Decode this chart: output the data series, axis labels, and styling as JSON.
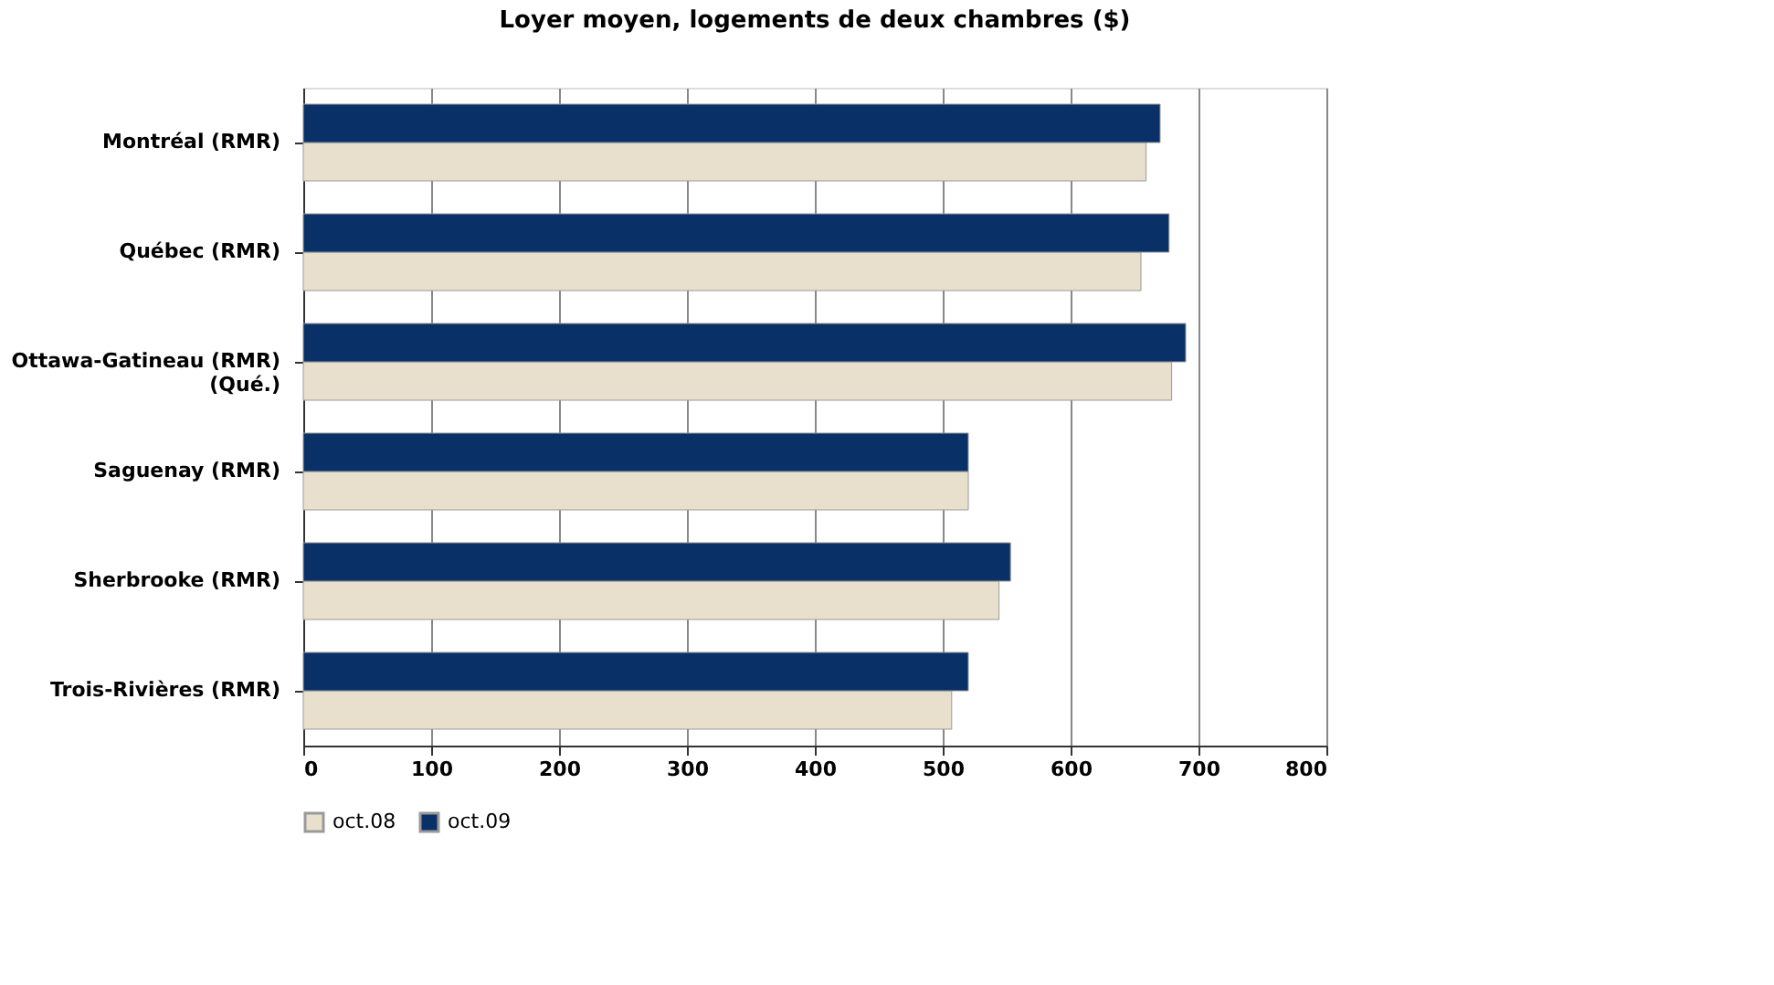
{
  "chart_data": {
    "type": "bar",
    "orientation": "horizontal",
    "title": "Loyer moyen, logements de deux chambres ($)",
    "categories": [
      "Montréal (RMR)",
      "Québec (RMR)",
      "Ottawa-Gatineau (RMR)\n(Qué.)",
      "Saguenay (RMR)",
      "Sherbrooke (RMR)",
      "Trois-Rivières (RMR)"
    ],
    "series": [
      {
        "name": "oct.08",
        "color": "#e8e0cc",
        "values": [
          659,
          655,
          679,
          520,
          544,
          507
        ]
      },
      {
        "name": "oct.09",
        "color": "#0a3068",
        "values": [
          670,
          677,
          690,
          520,
          553,
          520
        ]
      }
    ],
    "xlim": [
      0,
      800
    ],
    "xticks": [
      0,
      100,
      200,
      300,
      400,
      500,
      600,
      700,
      800
    ],
    "grid": "x",
    "legend": "bottom"
  }
}
